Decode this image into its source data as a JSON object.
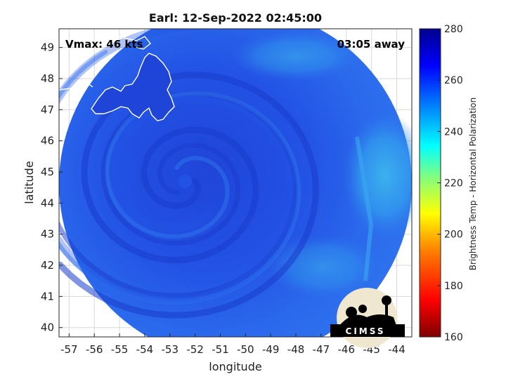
{
  "title": "Earl: 12-Sep-2022 02:45:00",
  "vmax_label": "Vmax: 46 kts",
  "time_away": "03:05 away",
  "xlabel": "longitude",
  "ylabel": "latitude",
  "colorbar_label": "Brightness Temp - Horizontal Polarization",
  "logo_text": "CIMSS",
  "chart_data": {
    "type": "heatmap",
    "title": "Earl: 12-Sep-2022 02:45:00",
    "xlabel": "longitude",
    "ylabel": "latitude",
    "x_ticks": [
      "-57",
      "-56",
      "-55",
      "-54",
      "-53",
      "-52",
      "-51",
      "-50",
      "-49",
      "-48",
      "-47",
      "-46",
      "-45",
      "-44"
    ],
    "y_ticks": [
      "40",
      "41",
      "42",
      "43",
      "44",
      "45",
      "46",
      "47",
      "48",
      "49"
    ],
    "xlim": [
      -57.4,
      -43.4
    ],
    "ylim": [
      39.7,
      49.6
    ],
    "grid": true,
    "storm_center": [
      -52.4,
      44.7
    ],
    "swath_center": [
      -50.0,
      44.5
    ],
    "colorbar": {
      "label": "Brightness Temp - Horizontal Polarization",
      "range": [
        160,
        280
      ],
      "ticks": [
        "160",
        "180",
        "200",
        "220",
        "240",
        "260",
        "280"
      ],
      "colors": [
        "#7f0000",
        "#ff0000",
        "#ff8000",
        "#ffff00",
        "#80ff80",
        "#00ffff",
        "#0080ff",
        "#0000ff",
        "#00008f"
      ]
    },
    "field_colors": {
      "deep": "#1a3ccc",
      "mid": "#2255e6",
      "bright": "#2f7cf0",
      "warm": "#3fb0ec"
    }
  }
}
